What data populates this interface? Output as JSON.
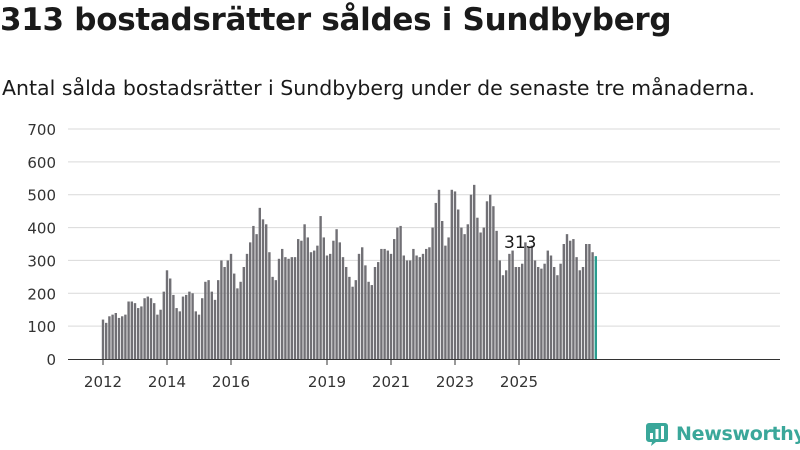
{
  "title": "313 bostadsrätter såldes i Sundbyberg",
  "subtitle": "Antal sålda bostadsrätter i Sundbyberg under de senaste tre månaderna.",
  "brand": {
    "name": "Newsworthy",
    "logo_icon": "newsworthy-chart-icon",
    "color": "#3aa79a"
  },
  "chart_data": {
    "type": "bar",
    "title": "",
    "xlabel": "",
    "ylabel": "",
    "ylim": [
      0,
      700
    ],
    "yticks": [
      0,
      100,
      200,
      300,
      400,
      500,
      600,
      700
    ],
    "grid": true,
    "legend": "none",
    "colors": {
      "bar": "#717075",
      "highlight": "#2a9d8f"
    },
    "x_tick_labels": [
      {
        "label": "2012",
        "index": 0
      },
      {
        "label": "2014",
        "index": 20
      },
      {
        "label": "2016",
        "index": 40
      },
      {
        "label": "2019",
        "index": 70
      },
      {
        "label": "2021",
        "index": 90
      },
      {
        "label": "2023",
        "index": 110
      },
      {
        "label": "2025",
        "index": 130
      }
    ],
    "annotation": {
      "text": "313",
      "index": 130
    },
    "values": [
      120,
      110,
      130,
      135,
      140,
      125,
      130,
      135,
      175,
      175,
      170,
      155,
      160,
      185,
      190,
      185,
      170,
      135,
      150,
      205,
      270,
      245,
      195,
      155,
      145,
      190,
      195,
      205,
      200,
      145,
      135,
      185,
      235,
      240,
      205,
      180,
      240,
      300,
      280,
      300,
      320,
      260,
      215,
      235,
      280,
      320,
      355,
      405,
      380,
      460,
      425,
      410,
      325,
      250,
      240,
      305,
      335,
      310,
      305,
      310,
      310,
      365,
      360,
      410,
      370,
      325,
      330,
      345,
      435,
      370,
      315,
      320,
      360,
      395,
      355,
      310,
      280,
      250,
      220,
      240,
      320,
      340,
      285,
      235,
      225,
      280,
      295,
      335,
      335,
      330,
      320,
      365,
      400,
      405,
      315,
      300,
      300,
      335,
      315,
      310,
      320,
      335,
      340,
      400,
      475,
      515,
      420,
      345,
      370,
      515,
      510,
      455,
      400,
      380,
      410,
      500,
      530,
      430,
      385,
      400,
      480,
      500,
      465,
      390,
      300,
      255,
      270,
      320,
      330,
      280,
      280,
      290,
      355,
      340,
      345,
      300,
      280,
      275,
      290,
      330,
      315,
      280,
      255,
      290,
      350,
      380,
      360,
      365,
      310,
      270,
      280,
      350,
      350,
      325,
      313
    ]
  }
}
